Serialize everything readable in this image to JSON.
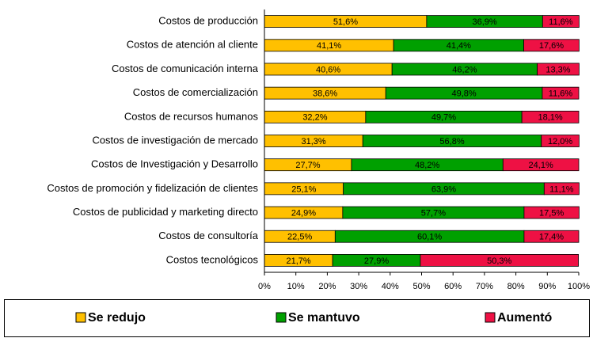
{
  "chart_data": {
    "type": "stacked-barh",
    "categories": [
      "Costos de producción",
      "Costos de atención al cliente",
      "Costos de comunicación interna",
      "Costos de comercialización",
      "Costos de recursos humanos",
      "Costos de investigación de mercado",
      "Costos de Investigación y Desarrollo",
      "Costos de promoción y fidelización de clientes",
      "Costos de publicidad y marketing directo",
      "Costos de consultoría",
      "Costos tecnológicos"
    ],
    "series": [
      {
        "name": "Se redujo",
        "color": "#ffc000",
        "values": [
          51.6,
          41.1,
          40.6,
          38.6,
          32.2,
          31.3,
          27.7,
          25.1,
          24.9,
          22.5,
          21.7
        ],
        "value_labels": [
          "51,6%",
          "41,1%",
          "40,6%",
          "38,6%",
          "32,2%",
          "31,3%",
          "27,7%",
          "25,1%",
          "24,9%",
          "22,5%",
          "21,7%"
        ]
      },
      {
        "name": "Se mantuvo",
        "color": "#00a000",
        "values": [
          36.9,
          41.4,
          46.2,
          49.8,
          49.7,
          56.8,
          48.2,
          63.9,
          57.7,
          60.1,
          27.9
        ],
        "value_labels": [
          "36,9%",
          "41,4%",
          "46,2%",
          "49,8%",
          "49,7%",
          "56,8%",
          "48,2%",
          "63,9%",
          "57,7%",
          "60,1%",
          "27,9%"
        ]
      },
      {
        "name": "Aumentó",
        "color": "#ee1144",
        "values": [
          11.6,
          17.6,
          13.3,
          11.6,
          18.1,
          12.0,
          24.1,
          11.1,
          17.5,
          17.4,
          50.3
        ],
        "value_labels": [
          "11,6%",
          "17,6%",
          "13,3%",
          "11,6%",
          "18,1%",
          "12,0%",
          "24,1%",
          "11,1%",
          "17,5%",
          "17,4%",
          "50,3%"
        ]
      }
    ],
    "xlim": [
      0,
      100
    ],
    "xticks": [
      {
        "value": 0,
        "label": "0%"
      },
      {
        "value": 10,
        "label": "10%"
      },
      {
        "value": 20,
        "label": "20%"
      },
      {
        "value": 30,
        "label": "30%"
      },
      {
        "value": 40,
        "label": "40%"
      },
      {
        "value": 50,
        "label": "50%"
      },
      {
        "value": 60,
        "label": "60%"
      },
      {
        "value": 70,
        "label": "70%"
      },
      {
        "value": 80,
        "label": "80%"
      },
      {
        "value": 90,
        "label": "90%"
      },
      {
        "value": 100,
        "label": "100%"
      }
    ],
    "legend": "bottom"
  }
}
